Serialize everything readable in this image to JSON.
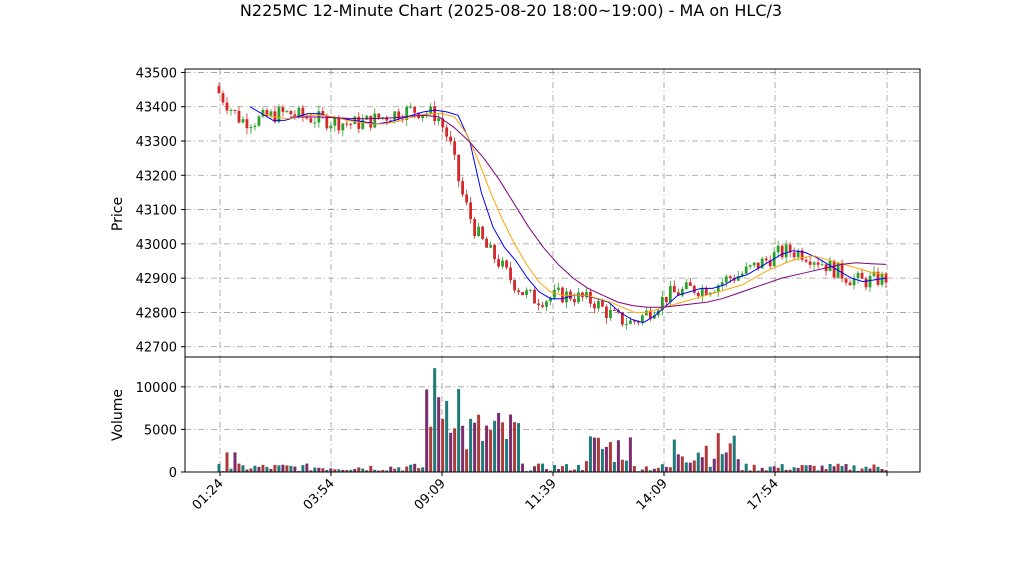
{
  "chart_data": {
    "type": "candlestick",
    "title": "N225MC 12-Minute Chart (2025-08-20 18:00~19:00) - MA on HLC/3",
    "price_panel": {
      "ylabel": "Price",
      "ylim": [
        42670,
        43510
      ],
      "yticks": [
        42700,
        42800,
        42900,
        43000,
        43100,
        43200,
        43300,
        43400,
        43500
      ],
      "grid": true
    },
    "volume_panel": {
      "ylabel": "Volume",
      "ylim": [
        0,
        13500
      ],
      "yticks": [
        0,
        5000,
        10000
      ],
      "grid": true
    },
    "xticks": [
      "01:24",
      "03:54",
      "09:09",
      "11:39",
      "14:09",
      "17:54"
    ],
    "up_color": "#2ca02c",
    "down_color": "#d62728",
    "volume_colors": [
      "#1f7a7a",
      "#7a2e6e",
      "#b03a3a"
    ],
    "ma_series": [
      {
        "color": "#0000ff",
        "values": [
          43400,
          43380,
          43360,
          43360,
          43370,
          43380,
          43380,
          43370,
          43365,
          43360,
          43355,
          43350,
          43355,
          43365,
          43375,
          43385,
          43390,
          43385,
          43375,
          43300,
          43150,
          43050,
          42990,
          42950,
          42900,
          42860,
          42840,
          42840,
          42850,
          42850,
          42840,
          42830,
          42800,
          42780,
          42770,
          42790,
          42820,
          42850,
          42860,
          42870,
          42870,
          42880,
          42900,
          42910,
          42930,
          42950,
          42970,
          42980,
          42975,
          42960,
          42940,
          42920,
          42900,
          42890,
          42895,
          42900
        ]
      },
      {
        "color": "#ffa500",
        "values": [
          43380,
          43370,
          43365,
          43370,
          43375,
          43375,
          43370,
          43360,
          43355,
          43350,
          43350,
          43355,
          43365,
          43375,
          43380,
          43380,
          43370,
          43320,
          43240,
          43150,
          43070,
          43000,
          42940,
          42890,
          42860,
          42850,
          42850,
          42850,
          42840,
          42830,
          42815,
          42800,
          42800,
          42810,
          42820,
          42830,
          42840,
          42850,
          42860,
          42870,
          42880,
          42900,
          42920,
          42935,
          42950,
          42960,
          42965,
          42955,
          42945,
          42935,
          42925,
          42915,
          42910
        ]
      },
      {
        "color": "#800080",
        "values": [
          43370,
          43370,
          43370,
          43368,
          43366,
          43365,
          43366,
          43368,
          43372,
          43375,
          43370,
          43340,
          43300,
          43250,
          43190,
          43120,
          43050,
          42990,
          42940,
          42900,
          42870,
          42850,
          42830,
          42820,
          42815,
          42815,
          42820,
          42825,
          42830,
          42840,
          42855,
          42870,
          42885,
          42900,
          42910,
          42920,
          42930,
          42940,
          42945,
          42942,
          42940
        ]
      }
    ],
    "volume_peaks": [
      13000,
      12000,
      10300,
      9300,
      8000,
      7500,
      7100,
      6000,
      5700,
      5000
    ]
  }
}
